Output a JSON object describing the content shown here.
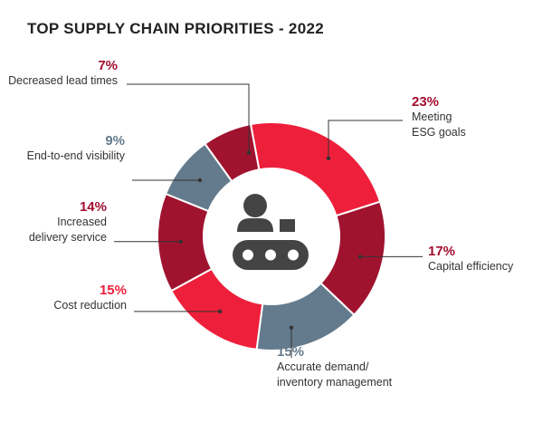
{
  "chart_data": {
    "type": "pie",
    "title": "TOP SUPPLY CHAIN PRIORITIES - 2022",
    "center_icon": "worker-conveyor-icon",
    "slices": [
      {
        "label": "Meeting ESG goals",
        "label_lines": [
          "Meeting",
          "ESG goals"
        ],
        "value": 23,
        "display": "23%",
        "color": "#ee1f3b",
        "label_color": "#a30d2f"
      },
      {
        "label": "Capital efficiency",
        "label_lines": [
          "Capital efficiency"
        ],
        "value": 17,
        "display": "17%",
        "color": "#a0132f",
        "label_color": "#a30d2f"
      },
      {
        "label": "Accurate demand/ inventory management",
        "label_lines": [
          "Accurate demand/",
          "inventory management"
        ],
        "value": 15,
        "display": "15%",
        "color": "#647b8d",
        "label_color": "#647b8d"
      },
      {
        "label": "Cost reduction",
        "label_lines": [
          "Cost reduction"
        ],
        "value": 15,
        "display": "15%",
        "color": "#ee1f3b",
        "label_color": "#ee1f3b"
      },
      {
        "label": "Increased delivery service",
        "label_lines": [
          "Increased",
          "delivery service"
        ],
        "value": 14,
        "display": "14%",
        "color": "#a0132f",
        "label_color": "#a30d2f"
      },
      {
        "label": "End-to-end visibility",
        "label_lines": [
          "End-to-end visibility"
        ],
        "value": 9,
        "display": "9%",
        "color": "#647b8d",
        "label_color": "#647b8d"
      },
      {
        "label": "Decreased lead times",
        "label_lines": [
          "Decreased lead times"
        ],
        "value": 7,
        "display": "7%",
        "color": "#a0132f",
        "label_color": "#a30d2f"
      }
    ]
  }
}
